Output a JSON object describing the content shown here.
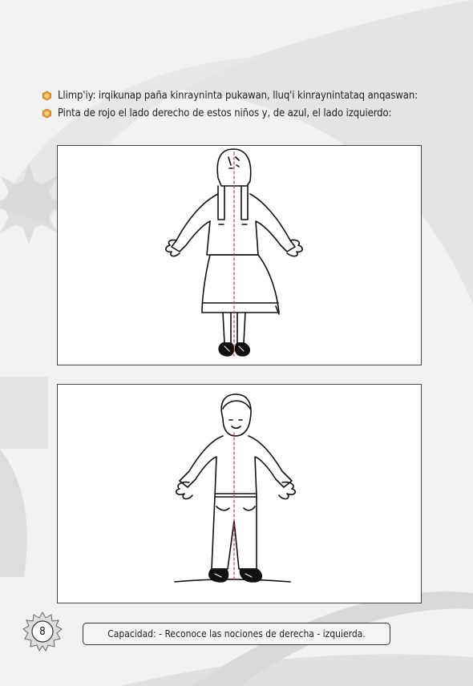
{
  "instructions": [
    {
      "text": "Llimp'iy: irqikunap paña kinrayninta pukawan, lluq'i kinraynintataq anqaswan:",
      "bullet_icon": "orange-hexagon-bullet-icon"
    },
    {
      "text": "Pinta de rojo el lado derecho de estos niños y, de azul, el lado izquierdo:",
      "bullet_icon": "orange-hexagon-bullet-icon"
    }
  ],
  "footer": {
    "page_number": "8",
    "capacity_text": "Capacidad: - Reconoce las nociones de derecha - izquierda."
  },
  "colors": {
    "bullet": "#e8a13a",
    "divider_line": "#d9342b",
    "page_background": "#f2f2f2",
    "swoosh": "#d6d6d6"
  }
}
